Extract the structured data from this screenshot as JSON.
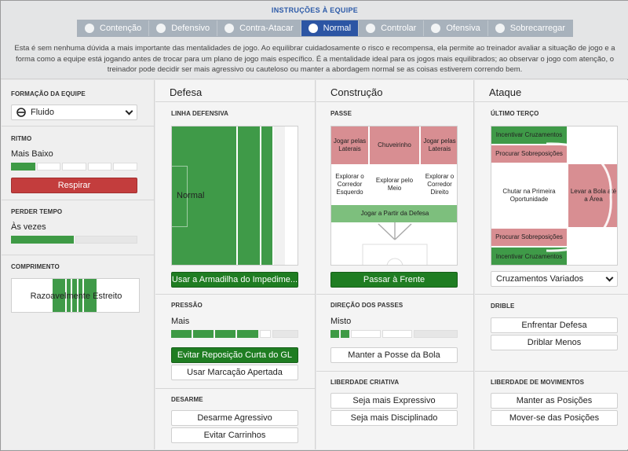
{
  "header": {
    "title": "INSTRUÇÕES À EQUIPE",
    "tabs": [
      {
        "label": "Contenção",
        "icon": "contain-icon",
        "active": false
      },
      {
        "label": "Defensivo",
        "icon": "shield-icon",
        "active": false
      },
      {
        "label": "Contra-Atacar",
        "icon": "counter-icon",
        "active": false
      },
      {
        "label": "Normal",
        "icon": "balance-icon",
        "active": true
      },
      {
        "label": "Controlar",
        "icon": "control-icon",
        "active": false
      },
      {
        "label": "Ofensiva",
        "icon": "attack-icon",
        "active": false
      },
      {
        "label": "Sobrecarregar",
        "icon": "overload-icon",
        "active": false
      }
    ],
    "description": "Esta é sem nenhuma dúvida a mais importante das mentalidades de jogo. Ao equilibrar cuidadosamente o risco e recompensa, ela permite ao treinador avaliar a situação de jogo e a forma como a equipe está jogando antes de trocar para um plano de jogo mais específico. É a mentalidade ideal para os jogos mais equilibrados; ao observar o jogo com atenção, o treinador pode decidir ser mais agressivo ou cauteloso ou manter a abordagem normal se as coisas estiverem correndo bem."
  },
  "left": {
    "formation_label": "FORMAÇÃO DA EQUIPE",
    "formation_value": "Fluido",
    "tempo_label": "RITMO",
    "tempo_value": "Mais Baixo",
    "tempo_level": 0.2,
    "breathe_button": "Respirar",
    "timewasting_label": "PERDER TEMPO",
    "timewasting_value": "Às vezes",
    "timewasting_level": 0.5,
    "width_label": "COMPRIMENTO",
    "width_value": "Razoavelmente Estreito"
  },
  "defense": {
    "title": "Defesa",
    "line_label": "LINHA DEFENSIVA",
    "line_value": "Normal",
    "trap_button": "Usar a Armadilha do Impedime...",
    "press_label": "PRESSÃO",
    "press_value": "Mais",
    "press_level": 0.6,
    "short_gk_button": "Evitar Reposição Curta do GL",
    "tight_marking_button": "Usar Marcação Apertada",
    "tackle_label": "DESARME",
    "tackle_hard_button": "Desarme Agressivo",
    "tackle_stay_button": "Evitar Carrinhos"
  },
  "buildup": {
    "title": "Construção",
    "passing_label": "PASSE",
    "zones": {
      "flank_left": "Jogar pelas Laterais",
      "lob": "Chuveirinho",
      "flank_right": "Jogar pelas Laterais",
      "exploit_left": "Explorar o Corredor Esquerdo",
      "middle": "Explorar pelo Meio",
      "exploit_right": "Explorar o Corredor Direito",
      "defence": "Jogar a Partir da Defesa"
    },
    "pass_into_space_button": "Passar à Frente",
    "directness_label": "DIREÇÃO DOS PASSES",
    "directness_value": "Misto",
    "directness_level": 0.4,
    "retain_button": "Manter a Posse da Bola",
    "creative_label": "LIBERDADE CRIATIVA",
    "expressive_button": "Seja mais Expressivo",
    "disciplined_button": "Seja mais Disciplinado"
  },
  "attack": {
    "title": "Ataque",
    "final_third_label": "ÚLTIMO TERÇO",
    "zones": {
      "cross_top": "Incentivar Cruzamentos",
      "overlap_top": "Procurar Sobreposições",
      "shoot": "Chutar na Primeira Oportunidade",
      "work_box": "Levar a Bola até a Área",
      "overlap_bottom": "Procurar Sobreposições",
      "cross_bottom": "Incentivar Cruzamentos"
    },
    "crossing_value": "Cruzamentos Variados",
    "dribble_label": "DRIBLE",
    "run_at_button": "Enfrentar Defesa",
    "dribble_less_button": "Driblar Menos",
    "movement_label": "LIBERDADE DE MOVIMENTOS",
    "hold_button": "Manter as Posições",
    "roam_button": "Mover-se das Posições"
  }
}
